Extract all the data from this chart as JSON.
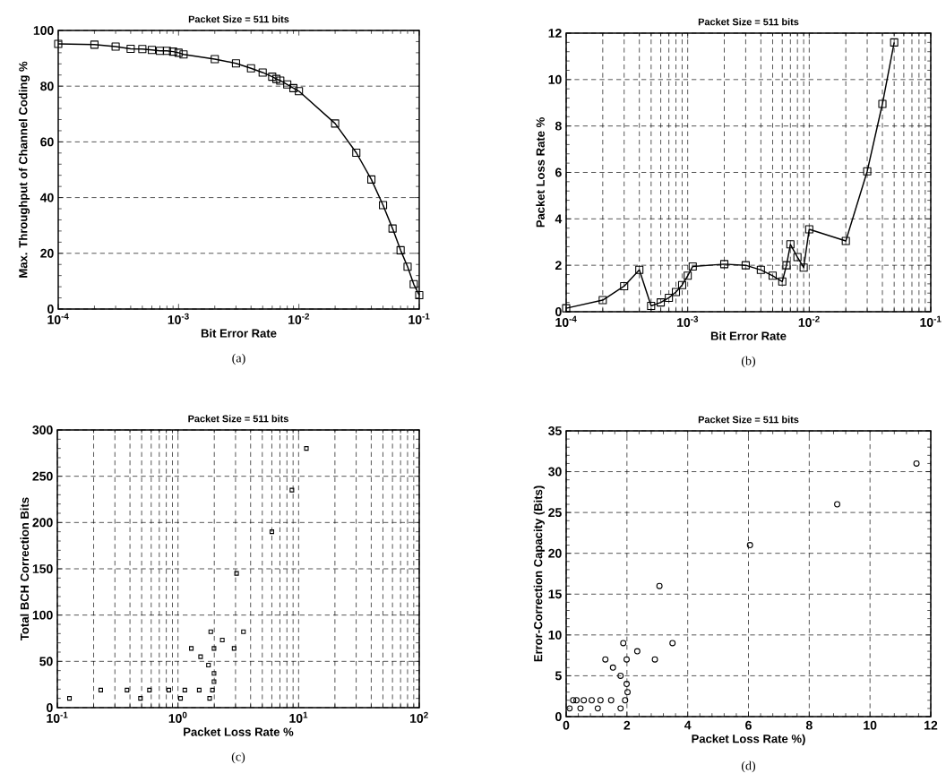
{
  "chart_data": [
    {
      "type": "line",
      "title": "Packet Size = 511 bits",
      "xlabel": "Bit Error Rate",
      "ylabel": "Max. Throughput of Channel Coding %",
      "annotations": [
        "(a)"
      ],
      "log": "x",
      "grid": "y",
      "marker": "square",
      "line_style": "solid",
      "xlim": [
        0.0001,
        0.1
      ],
      "xticks": [
        {
          "value": 0.0001,
          "label": "10$^{-4}$"
        },
        {
          "value": 0.001,
          "label": "10$^{-3}$"
        },
        {
          "value": 0.01,
          "label": "10$^{-2}$"
        },
        {
          "value": 0.1,
          "label": "10$^{-1}$"
        }
      ],
      "ylim": [
        0,
        100
      ],
      "yticks": [
        0,
        20,
        40,
        60,
        80,
        100
      ],
      "series": [
        {
          "color": "#000000",
          "x": [
            0.0001,
            0.0002,
            0.0003,
            0.0004,
            0.0005,
            0.0006,
            0.0007,
            0.0008,
            0.0009,
            0.001,
            0.0011,
            0.002,
            0.003,
            0.004,
            0.005,
            0.006,
            0.0065,
            0.007,
            0.008,
            0.009,
            0.01,
            0.02,
            0.03,
            0.04,
            0.05,
            0.06,
            0.07,
            0.08,
            0.09,
            0.1
          ],
          "values": [
            95.2,
            94.9,
            94.2,
            93.4,
            93.3,
            93.0,
            92.7,
            92.7,
            92.4,
            92.0,
            91.4,
            89.7,
            88.2,
            86.4,
            84.9,
            83.4,
            82.6,
            82.0,
            80.6,
            79.3,
            78.2,
            66.6,
            56.1,
            46.5,
            37.3,
            28.9,
            21.1,
            15.2,
            8.9,
            5.0
          ]
        }
      ]
    },
    {
      "type": "line",
      "title": "Packet Size = 511 bits",
      "xlabel": "Bit Error Rate",
      "ylabel": "Packet Loss Rate %",
      "annotations": [
        "(b)"
      ],
      "log": "x",
      "grid": true,
      "marker": "square",
      "line_style": "solid",
      "xlim": [
        0.0001,
        0.1
      ],
      "xticks": [
        {
          "value": 0.0001,
          "label": "10$^{-4}$"
        },
        {
          "value": 0.001,
          "label": "10$^{-3}$"
        },
        {
          "value": 0.01,
          "label": "10$^{-2}$"
        },
        {
          "value": 0.1,
          "label": "10$^{-1}$"
        }
      ],
      "ylim": [
        0,
        12
      ],
      "yticks": [
        0,
        2,
        4,
        6,
        8,
        10,
        12
      ],
      "series": [
        {
          "color": "#000000",
          "x": [
            0.0001,
            0.0002,
            0.0003,
            0.0004,
            0.0005,
            0.0006,
            0.0007,
            0.0008,
            0.0009,
            0.001,
            0.0011,
            0.002,
            0.003,
            0.004,
            0.005,
            0.006,
            0.0065,
            0.007,
            0.008,
            0.009,
            0.01,
            0.02,
            0.03,
            0.04,
            0.05
          ],
          "values": [
            0.15,
            0.5,
            1.1,
            1.8,
            0.25,
            0.4,
            0.6,
            0.85,
            1.15,
            1.55,
            1.95,
            2.05,
            2.0,
            1.8,
            1.55,
            1.3,
            2.0,
            2.9,
            2.35,
            1.9,
            3.55,
            3.05,
            6.05,
            8.95,
            11.6
          ]
        }
      ]
    },
    {
      "type": "scatter",
      "title": "Packet Size = 511 bits",
      "xlabel": "Packet Loss Rate  %",
      "ylabel": "Total BCH Correction Bits",
      "annotations": [
        "(c)"
      ],
      "log": "x",
      "grid": true,
      "marker": "square",
      "xlim": [
        0.1,
        100
      ],
      "xticks": [
        {
          "value": 0.1,
          "label": "10$^{-1}$"
        },
        {
          "value": 1,
          "label": "10$^{0}$"
        },
        {
          "value": 10,
          "label": "10$^{1}$"
        },
        {
          "value": 100,
          "label": "10$^{2}$"
        }
      ],
      "ylim": [
        0,
        300
      ],
      "yticks": [
        0,
        50,
        100,
        150,
        200,
        250,
        300
      ],
      "series": [
        {
          "color": "#000000",
          "x": [
            0.126,
            0.229,
            0.378,
            0.489,
            0.58,
            0.84,
            1.05,
            1.14,
            1.29,
            1.5,
            1.54,
            1.79,
            1.83,
            1.87,
            1.93,
            1.99,
            1.99,
            1.99,
            2.33,
            2.92,
            3.06,
            3.49,
            6.0,
            8.8,
            11.6
          ],
          "values": [
            10,
            19,
            19,
            10,
            19,
            19,
            10,
            19,
            64,
            19,
            55,
            46,
            10,
            82,
            19,
            37,
            28,
            64,
            73,
            64,
            145,
            82,
            190,
            235,
            280
          ]
        }
      ]
    },
    {
      "type": "scatter",
      "title": "Packet Size = 511 bits",
      "xlabel": "Packet Loss Rate  %)",
      "ylabel": "Error-Correction Capacity (Bits)",
      "annotations": [
        "(d)"
      ],
      "grid": true,
      "marker": "circle",
      "xlim": [
        0,
        12
      ],
      "xticks": [
        0,
        2,
        4,
        6,
        8,
        10,
        12
      ],
      "ylim": [
        0,
        35
      ],
      "yticks": [
        0,
        5,
        10,
        15,
        20,
        25,
        30,
        35
      ],
      "series": [
        {
          "color": "#000000",
          "x": [
            0.11,
            0.23,
            0.34,
            0.47,
            0.58,
            0.84,
            1.04,
            1.13,
            1.29,
            1.48,
            1.54,
            1.79,
            1.79,
            1.88,
            1.94,
            1.99,
            2.02,
            1.99,
            2.34,
            2.92,
            3.07,
            3.5,
            6.05,
            8.92,
            11.53
          ],
          "values": [
            1,
            2,
            2,
            1,
            2,
            2,
            1,
            2,
            7,
            2,
            6,
            5,
            1,
            9,
            2,
            4,
            3,
            7,
            8,
            7,
            16,
            9,
            21,
            26,
            31
          ]
        }
      ]
    }
  ]
}
